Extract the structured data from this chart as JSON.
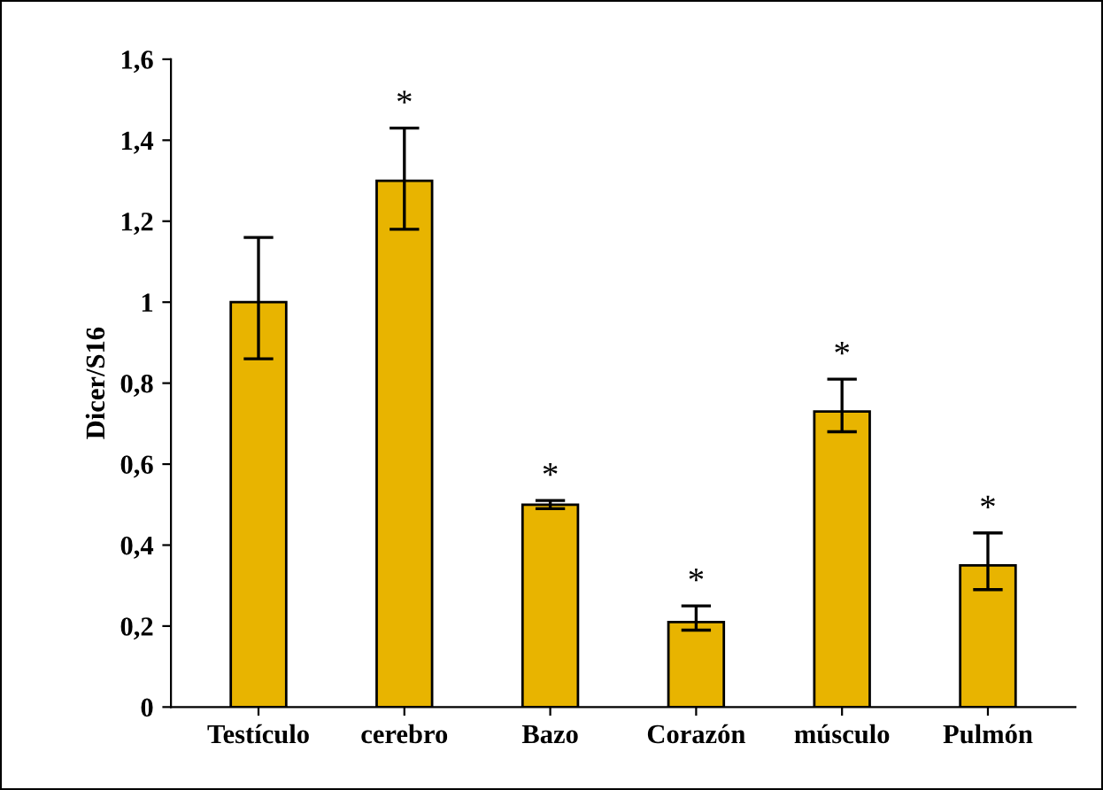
{
  "chart_data": {
    "type": "bar",
    "ylabel": "Dicer/S16",
    "categories": [
      "Testículo",
      "cerebro",
      "Bazo",
      "Corazón",
      "músculo",
      "Pulmón"
    ],
    "values": [
      1.0,
      1.3,
      0.5,
      0.21,
      0.73,
      0.35
    ],
    "errors": [
      [
        0.86,
        1.16
      ],
      [
        1.18,
        1.43
      ],
      [
        0.49,
        0.51
      ],
      [
        0.19,
        0.25
      ],
      [
        0.68,
        0.81
      ],
      [
        0.29,
        0.43
      ]
    ],
    "color": "#e8b400",
    "ylim": [
      0,
      1.6
    ],
    "yticks": [
      0,
      {
        "value": 0.2,
        "label": "0,2"
      },
      {
        "value": 0.4,
        "label": "0,4"
      },
      {
        "value": 0.6,
        "label": "0,6"
      },
      {
        "value": 0.8,
        "label": "0,8"
      },
      1,
      {
        "value": 1.2,
        "label": "1,2"
      },
      {
        "value": 1.4,
        "label": "1,4"
      },
      {
        "value": 1.6,
        "label": "1,6"
      }
    ],
    "annotations": [
      {
        "text": "*",
        "x": "cerebro",
        "y": 1.43
      },
      {
        "text": "*",
        "x": "Bazo",
        "y": 0.51
      },
      {
        "text": "*",
        "x": "Corazón",
        "y": 0.25
      },
      {
        "text": "*",
        "x": "músculo",
        "y": 0.81
      },
      {
        "text": "*",
        "x": "Pulmón",
        "y": 0.43
      }
    ],
    "grid": false
  }
}
